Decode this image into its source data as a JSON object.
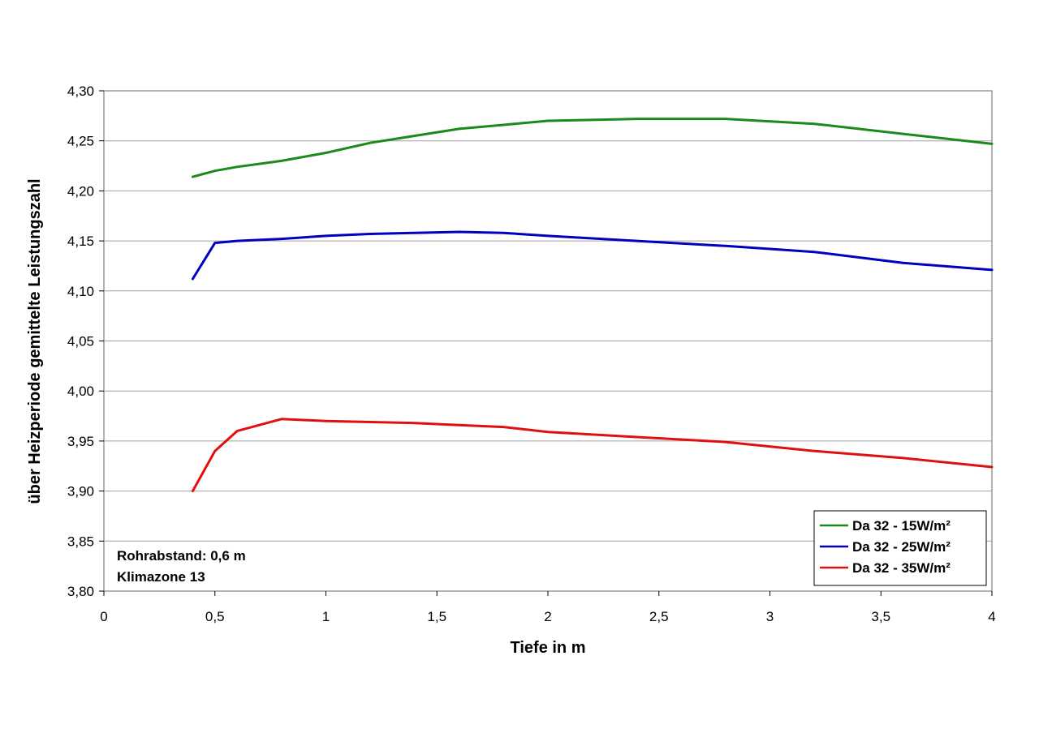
{
  "chart_data": {
    "type": "line",
    "xlabel": "Tiefe in m",
    "ylabel": "über Heizperiode gemittelte Leistungszahl",
    "xlim": [
      0,
      4
    ],
    "ylim": [
      3.8,
      4.3
    ],
    "x_ticks": [
      "0",
      "0,5",
      "1",
      "1,5",
      "2",
      "2,5",
      "3",
      "3,5",
      "4"
    ],
    "x_tick_values": [
      0,
      0.5,
      1,
      1.5,
      2,
      2.5,
      3,
      3.5,
      4
    ],
    "y_ticks": [
      "3,80",
      "3,85",
      "3,90",
      "3,95",
      "4,00",
      "4,05",
      "4,10",
      "4,15",
      "4,20",
      "4,25",
      "4,30"
    ],
    "y_tick_values": [
      3.8,
      3.85,
      3.9,
      3.95,
      4.0,
      4.05,
      4.1,
      4.15,
      4.2,
      4.25,
      4.3
    ],
    "grid": "horizontal",
    "legend_position": "bottom-right",
    "annotations": [
      "Rohrabstand: 0,6 m",
      "Klimazone 13"
    ],
    "series": [
      {
        "name": "Da 32 - 15W/m²",
        "color": "#1a8a1a",
        "x": [
          0.4,
          0.5,
          0.6,
          0.8,
          1.0,
          1.2,
          1.4,
          1.6,
          1.8,
          2.0,
          2.4,
          2.8,
          3.2,
          3.6,
          4.0
        ],
        "y": [
          4.214,
          4.22,
          4.224,
          4.23,
          4.238,
          4.248,
          4.255,
          4.262,
          4.266,
          4.27,
          4.272,
          4.272,
          4.267,
          4.257,
          4.247
        ]
      },
      {
        "name": "Da 32 - 25W/m²",
        "color": "#0000c0",
        "x": [
          0.4,
          0.5,
          0.6,
          0.8,
          1.0,
          1.2,
          1.4,
          1.6,
          1.8,
          2.0,
          2.4,
          2.8,
          3.2,
          3.6,
          4.0
        ],
        "y": [
          4.112,
          4.148,
          4.15,
          4.152,
          4.155,
          4.157,
          4.158,
          4.159,
          4.158,
          4.155,
          4.15,
          4.145,
          4.139,
          4.128,
          4.121
        ]
      },
      {
        "name": "Da 32 - 35W/m²",
        "color": "#e01010",
        "x": [
          0.4,
          0.5,
          0.6,
          0.8,
          1.0,
          1.2,
          1.4,
          1.6,
          1.8,
          2.0,
          2.4,
          2.8,
          3.2,
          3.6,
          4.0
        ],
        "y": [
          3.9,
          3.94,
          3.96,
          3.972,
          3.97,
          3.969,
          3.968,
          3.966,
          3.964,
          3.959,
          3.954,
          3.949,
          3.94,
          3.933,
          3.924
        ]
      }
    ]
  }
}
